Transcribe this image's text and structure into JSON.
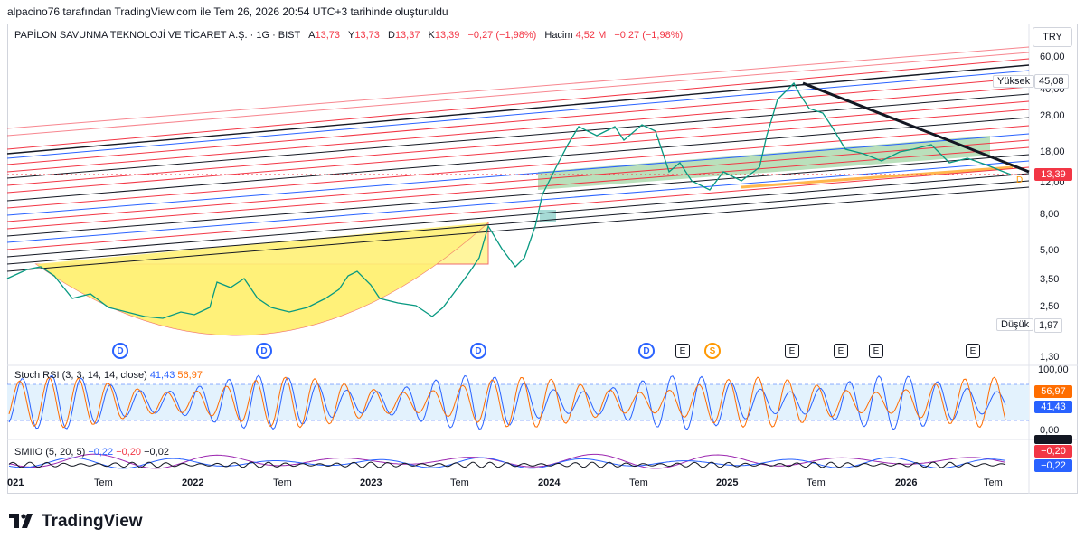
{
  "header": {
    "caption": "alpacino76 tarafından TradingView.com ile Tem 26, 2026 20:54 UTC+3 tarihinde oluşturuldu"
  },
  "legend": {
    "symbol": "PAPİLON SAVUNMA TEKNOLOJİ VE TİCARET A.Ş. · 1G · BIST",
    "o_label": "A",
    "o_value": "13,73",
    "h_label": "Y",
    "h_value": "13,73",
    "l_label": "D",
    "l_value": "13,37",
    "c_label": "K",
    "c_value": "13,39",
    "change": "−0,27 (−1,98%)",
    "volume_label": "Hacim",
    "volume_value": "4,52 M",
    "volume_change": "−0,27 (−1,98%)"
  },
  "currency": "TRY",
  "price_axis": [
    "60,00",
    "40,00",
    "28,00",
    "18,00",
    "12,00",
    "8,00",
    "5,00",
    "3,50",
    "2,50",
    "1,30"
  ],
  "price_badges": {
    "high_label": "Yüksek",
    "high_value": "45,08",
    "last_value": "13,39",
    "low_label": "Düşük",
    "low_value": "1,97"
  },
  "events": {
    "d": "D",
    "e": "E",
    "s": "S"
  },
  "stoch_rsi": {
    "label": "Stoch RSI (3, 3, 14, 14, close)",
    "k_value": "41,43",
    "d_value": "56,97",
    "axis": [
      "100,00",
      "0,00"
    ]
  },
  "smiio": {
    "label": "SMIIO (5, 20, 5)",
    "v1": "−0,22",
    "v2": "−0,20",
    "v3": "−0,02",
    "badge_black": "",
    "badge_red": "−0,20",
    "badge_blue": "−0,22"
  },
  "time_axis": [
    "021",
    "Tem",
    "2022",
    "Tem",
    "2023",
    "Tem",
    "2024",
    "Tem",
    "2025",
    "Tem",
    "2026",
    "Tem"
  ],
  "brand": "TradingView",
  "colors": {
    "up": "#089981",
    "down": "#f23645",
    "accent": "#2962ff",
    "cup": "#ffeb3b"
  }
}
